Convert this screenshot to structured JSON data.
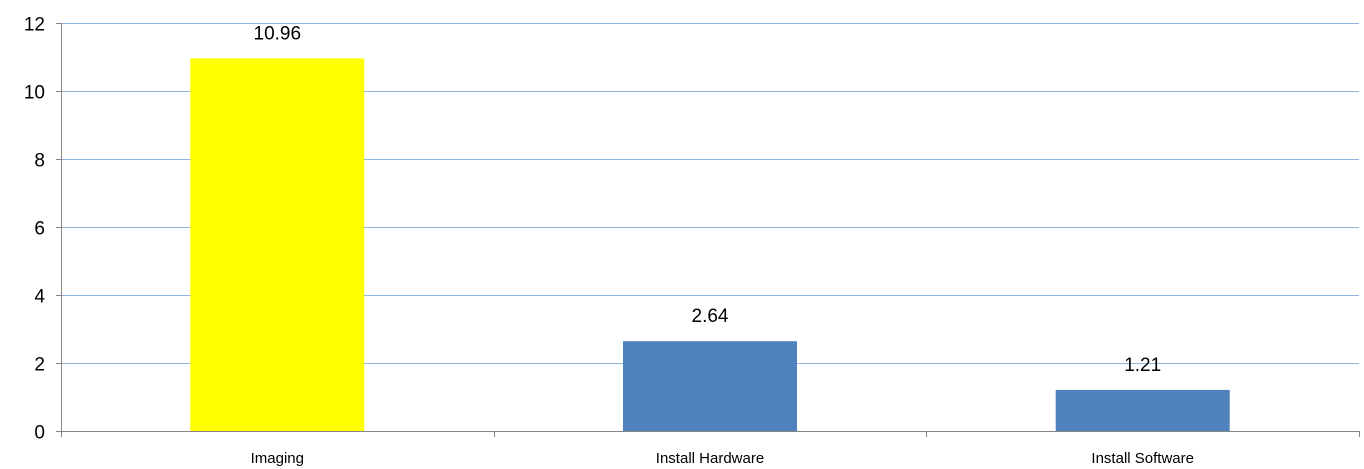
{
  "chart_data": {
    "type": "bar",
    "categories": [
      "Imaging",
      "Install Hardware",
      "Install Software"
    ],
    "values": [
      10.96,
      2.64,
      1.21
    ],
    "data_labels": [
      "10.96",
      "2.64",
      "1.21"
    ],
    "bar_colors": [
      "#ffff00",
      "#4f81bd",
      "#4f81bd"
    ],
    "ylim": [
      0,
      12
    ],
    "yticks": [
      0,
      2,
      4,
      6,
      8,
      10,
      12
    ],
    "ytick_labels": [
      "0",
      "2",
      "4",
      "6",
      "8",
      "10",
      "12"
    ],
    "grid": true,
    "gridline_color": "#8eb4e3",
    "axis_color": "#868686",
    "legend": false,
    "title": "",
    "xlabel": "",
    "ylabel": ""
  }
}
